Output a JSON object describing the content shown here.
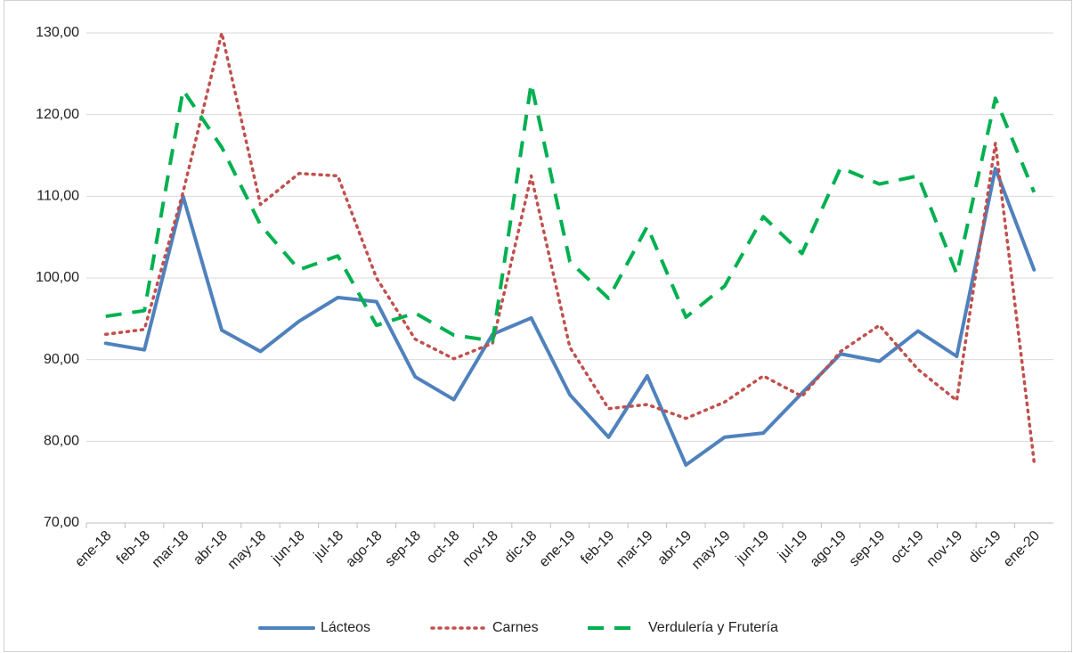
{
  "chart_data": {
    "type": "line",
    "categories": [
      "ene-18",
      "feb-18",
      "mar-18",
      "abr-18",
      "may-18",
      "jun-18",
      "jul-18",
      "ago-18",
      "sep-18",
      "oct-18",
      "nov-18",
      "dic-18",
      "ene-19",
      "feb-19",
      "mar-19",
      "abr-19",
      "may-19",
      "jun-19",
      "jul-19",
      "ago-19",
      "sep-19",
      "oct-19",
      "nov-19",
      "dic-19",
      "ene-20"
    ],
    "series": [
      {
        "name": "Lácteos",
        "color": "#4f81bd",
        "values": [
          92.0,
          91.2,
          110.0,
          93.6,
          91.0,
          94.7,
          97.6,
          97.1,
          87.9,
          85.1,
          93.1,
          95.1,
          85.7,
          80.5,
          88.0,
          77.1,
          80.5,
          81.0,
          85.9,
          90.7,
          89.8,
          93.5,
          90.4,
          113.4,
          101.0
        ]
      },
      {
        "name": "Carnes",
        "color": "#c0504d",
        "values": [
          93.1,
          93.7,
          110.5,
          130.0,
          109.0,
          112.8,
          112.5,
          100.0,
          92.5,
          90.1,
          92.0,
          112.5,
          91.5,
          84.0,
          84.5,
          82.8,
          84.8,
          88.0,
          85.5,
          91.0,
          94.2,
          88.8,
          85.0,
          116.5,
          77.5
        ]
      },
      {
        "name": "Verdulería y Frutería",
        "color": "#00b050",
        "values": [
          95.3,
          96.0,
          123.0,
          116.0,
          106.5,
          101.0,
          102.7,
          94.2,
          95.7,
          93.0,
          92.3,
          123.8,
          102.0,
          97.5,
          106.3,
          95.2,
          99.0,
          107.5,
          103.0,
          113.5,
          111.5,
          112.5,
          100.5,
          122.0,
          110.5
        ]
      }
    ],
    "ylim": [
      70,
      130
    ],
    "yticks": [
      {
        "value": 70,
        "label": "70,00"
      },
      {
        "value": 80,
        "label": "80,00"
      },
      {
        "value": 90,
        "label": "90,00"
      },
      {
        "value": 100,
        "label": "100,00"
      },
      {
        "value": 110,
        "label": "110,00"
      },
      {
        "value": 120,
        "label": "120,00"
      },
      {
        "value": 130,
        "label": "130,00"
      }
    ],
    "grid": true,
    "legend": "bottom"
  }
}
